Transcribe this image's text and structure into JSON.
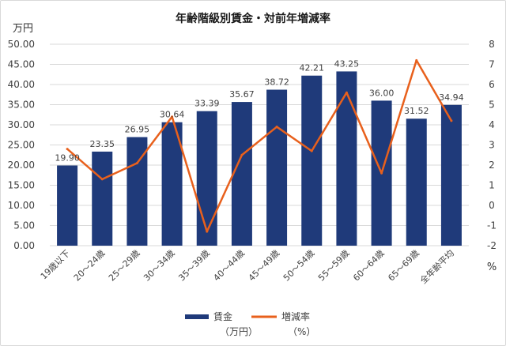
{
  "chart_data": {
    "type": "bar",
    "title": "年齢階級別賃金・対前年増減率",
    "categories": [
      "19歳以下",
      "20～24歳",
      "25～29歳",
      "30～34歳",
      "35～39歳",
      "40～44歳",
      "45～49歳",
      "50～54歳",
      "55～59歳",
      "60～64歳",
      "65～69歳",
      "全年齢平均"
    ],
    "series": [
      {
        "name": "賃金",
        "unit_label": "（万円）",
        "type": "bar",
        "axis": "left",
        "color": "#1f3a7a",
        "values": [
          19.9,
          23.35,
          26.95,
          30.64,
          33.39,
          35.67,
          38.72,
          42.21,
          43.25,
          36.0,
          31.52,
          34.94
        ],
        "labels": [
          "19.90",
          "23.35",
          "26.95",
          "30.64",
          "33.39",
          "35.67",
          "38.72",
          "42.21",
          "43.25",
          "36.00",
          "31.52",
          "34.94"
        ]
      },
      {
        "name": "増減率",
        "unit_label": "（%）",
        "type": "line",
        "axis": "right",
        "color": "#e8601c",
        "values": [
          2.8,
          1.3,
          2.1,
          4.4,
          -1.3,
          2.5,
          3.9,
          2.7,
          5.6,
          1.6,
          7.2,
          4.2
        ]
      }
    ],
    "y_left": {
      "unit": "万円",
      "min": 0,
      "max": 50,
      "ticks": [
        "0.00",
        "5.00",
        "10.00",
        "15.00",
        "20.00",
        "25.00",
        "30.00",
        "35.00",
        "40.00",
        "45.00",
        "50.00"
      ]
    },
    "y_right": {
      "unit": "%",
      "min": -2,
      "max": 8,
      "ticks": [
        "-2",
        "-1",
        "0",
        "1",
        "2",
        "3",
        "4",
        "5",
        "6",
        "7",
        "8"
      ]
    },
    "grid": true,
    "legend": "bottom"
  }
}
